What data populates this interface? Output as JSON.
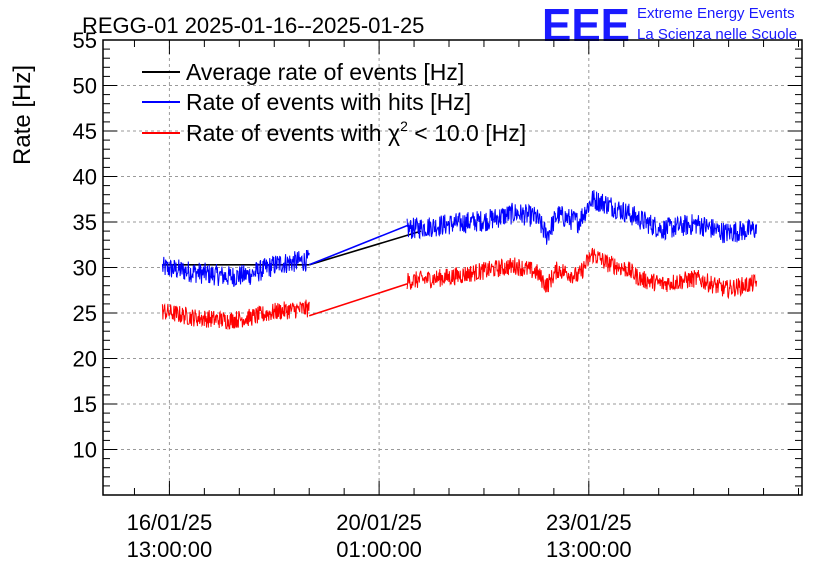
{
  "chart_data": {
    "type": "line",
    "title": "REGG-01 2025-01-16--2025-01-25",
    "xlabel": "",
    "ylabel": "Rate [Hz]",
    "ylim": [
      5,
      55
    ],
    "yticks": [
      10,
      15,
      20,
      25,
      30,
      35,
      40,
      45,
      50,
      55
    ],
    "xlim_days": [
      0,
      10
    ],
    "grid": true,
    "legend_position": "top-left",
    "x_ticks": [
      {
        "day": 0.95,
        "line1": "16/01/25",
        "line2": "13:00:00"
      },
      {
        "day": 3.95,
        "line1": "20/01/25",
        "line2": "01:00:00"
      },
      {
        "day": 6.95,
        "line1": "23/01/25",
        "line2": "13:00:00"
      }
    ],
    "series": [
      {
        "name": "Average rate of events [Hz]",
        "color": "#000000",
        "segments": [
          {
            "x": [
              0.85,
              2.95
            ],
            "y": [
              30.3,
              30.3
            ]
          },
          {
            "x": [
              2.95,
              4.55
            ],
            "y": [
              30.3,
              34.0
            ]
          }
        ]
      },
      {
        "name": "Rate of events with hits [Hz]",
        "color": "#0000ff",
        "noise": 1.2,
        "segments": [
          {
            "x": [
              0.85,
              1.3,
              1.8,
              2.1,
              2.5,
              2.95
            ],
            "y": [
              30.0,
              29.5,
              29.0,
              29.2,
              30.4,
              30.8
            ]
          },
          {
            "x": [
              2.95,
              4.35
            ],
            "y": [
              30.3,
              34.6
            ]
          },
          {
            "x": [
              4.35,
              5.0,
              5.5,
              5.9,
              6.2,
              6.35,
              6.5,
              6.8,
              7.0,
              7.2,
              7.5,
              7.7,
              8.0,
              8.5,
              8.9,
              9.35
            ],
            "y": [
              34.2,
              34.8,
              35.2,
              36.0,
              35.5,
              33.5,
              35.8,
              35.0,
              37.5,
              37.0,
              36.0,
              35.2,
              34.2,
              34.8,
              33.8,
              34.2
            ]
          }
        ]
      },
      {
        "name": "Rate of events with χ² < 10.0 [Hz]",
        "color": "#ff0000",
        "noise": 1.0,
        "segments": [
          {
            "x": [
              0.85,
              1.3,
              1.8,
              2.1,
              2.5,
              2.95
            ],
            "y": [
              25.2,
              24.5,
              24.2,
              24.5,
              25.2,
              25.5
            ]
          },
          {
            "x": [
              2.95,
              4.35
            ],
            "y": [
              24.7,
              28.2
            ]
          },
          {
            "x": [
              4.35,
              5.0,
              5.5,
              5.9,
              6.2,
              6.35,
              6.5,
              6.8,
              7.0,
              7.2,
              7.5,
              7.7,
              8.0,
              8.5,
              8.9,
              9.35
            ],
            "y": [
              28.5,
              29.0,
              29.7,
              30.2,
              29.5,
              28.0,
              29.8,
              29.0,
              31.5,
              30.5,
              29.8,
              28.7,
              28.2,
              28.8,
              27.6,
              28.3
            ]
          }
        ]
      }
    ]
  },
  "legend": {
    "items": [
      {
        "label": "Average rate of events [Hz]",
        "color": "#000000"
      },
      {
        "label": "Rate of events with hits [Hz]",
        "color": "#0000ff"
      },
      {
        "label_prefix": "Rate of events with ",
        "chi": "χ",
        "sup": "2",
        "label_suffix": " < 10.0 [Hz]",
        "color": "#ff0000"
      }
    ]
  },
  "logo": {
    "big": "EEE",
    "line1": "Extreme Energy Events",
    "line2": "La Scienza nelle Scuole",
    "color": "#1a1aff"
  }
}
